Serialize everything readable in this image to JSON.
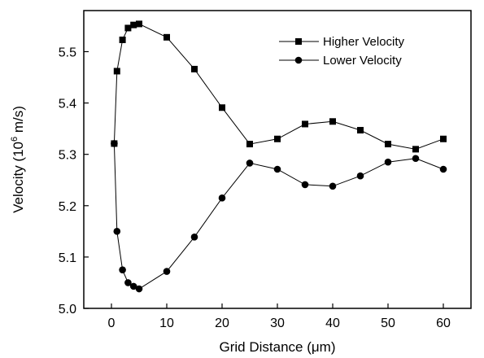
{
  "chart_data": {
    "type": "line",
    "xlabel": "Grid Distance (μm)",
    "ylabel": {
      "prefix": "Velocity (10",
      "superscript": "6",
      "suffix": " m/s)"
    },
    "xlim": [
      -5,
      65
    ],
    "ylim": [
      5.0,
      5.58
    ],
    "xticks": [
      0,
      10,
      20,
      30,
      40,
      50,
      60
    ],
    "xtick_labels": [
      "0",
      "10",
      "20",
      "30",
      "40",
      "50",
      "60"
    ],
    "yticks": [
      5.0,
      5.1,
      5.2,
      5.3,
      5.4,
      5.5
    ],
    "ytick_labels": [
      "5.0",
      "5.1",
      "5.2",
      "5.3",
      "5.4",
      "5.5"
    ],
    "grid": false,
    "legend_position": "top-right",
    "series": [
      {
        "name": "Higher Velocity",
        "marker": "square",
        "x": [
          0.5,
          1,
          2,
          3,
          4,
          5,
          10,
          15,
          20,
          25,
          30,
          35,
          40,
          45,
          50,
          55,
          60
        ],
        "values": [
          5.321,
          5.462,
          5.523,
          5.546,
          5.552,
          5.554,
          5.528,
          5.466,
          5.391,
          5.32,
          5.33,
          5.359,
          5.364,
          5.347,
          5.32,
          5.31,
          5.33
        ]
      },
      {
        "name": "Lower Velocity",
        "marker": "circle",
        "x": [
          0.5,
          1,
          2,
          3,
          4,
          5,
          10,
          15,
          20,
          25,
          30,
          35,
          40,
          45,
          50,
          55,
          60
        ],
        "values": [
          5.321,
          5.15,
          5.075,
          5.05,
          5.043,
          5.038,
          5.072,
          5.139,
          5.215,
          5.283,
          5.271,
          5.241,
          5.238,
          5.258,
          5.285,
          5.292,
          5.271
        ]
      }
    ]
  }
}
